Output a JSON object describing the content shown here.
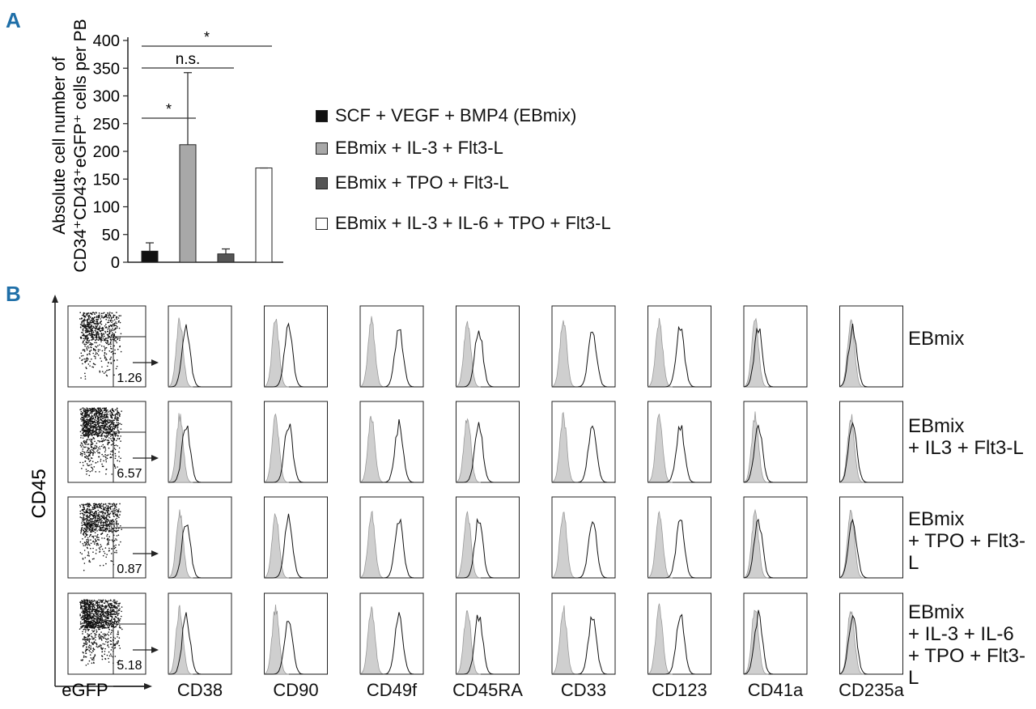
{
  "panel_a": {
    "letter": "A",
    "chart_data": {
      "type": "bar",
      "ylabel_line1": "Absolute cell number of",
      "ylabel_line2": "CD34⁺CD43⁺eGFP⁺ cells per PB",
      "ylim": [
        0,
        400
      ],
      "yticks": [
        "0",
        "50",
        "100",
        "150",
        "200",
        "250",
        "300",
        "350",
        "400"
      ],
      "categories": [
        "SCF + VEGF + BMP4 (EBmix)",
        "EBmix + IL-3 + Flt3-L",
        "EBmix + TPO + Flt3-L",
        "EBmix + IL-3 + IL-6 + TPO + Flt3-L"
      ],
      "values": [
        20,
        212,
        15,
        170
      ],
      "errors": [
        15,
        130,
        9,
        0
      ],
      "colors": [
        "#111111",
        "#a8a8a8",
        "#555555",
        "#ffffff"
      ],
      "significance": [
        {
          "label": "*",
          "from": 0,
          "to": 1
        },
        {
          "label": "n.s.",
          "from": 0,
          "to": 2
        },
        {
          "label": "*",
          "from": 0,
          "to": 3
        }
      ],
      "legend_position": "right"
    }
  },
  "panel_b": {
    "letter": "B",
    "yaxis_label": "CD45",
    "xaxis_label": "eGFP",
    "markers": [
      "CD38",
      "CD90",
      "CD49f",
      "CD45RA",
      "CD33",
      "CD123",
      "CD41a",
      "CD235a"
    ],
    "rows": [
      {
        "label": "EBmix",
        "gate_percent": "1.26"
      },
      {
        "label": "EBmix\n+ IL3 + Flt3-L",
        "gate_percent": "6.57"
      },
      {
        "label": "EBmix\n+ TPO + Flt3-L",
        "gate_percent": "0.87"
      },
      {
        "label": "EBmix\n+ IL-3 + IL-6\n+ TPO + Flt3-L",
        "gate_percent": "5.18"
      }
    ]
  }
}
